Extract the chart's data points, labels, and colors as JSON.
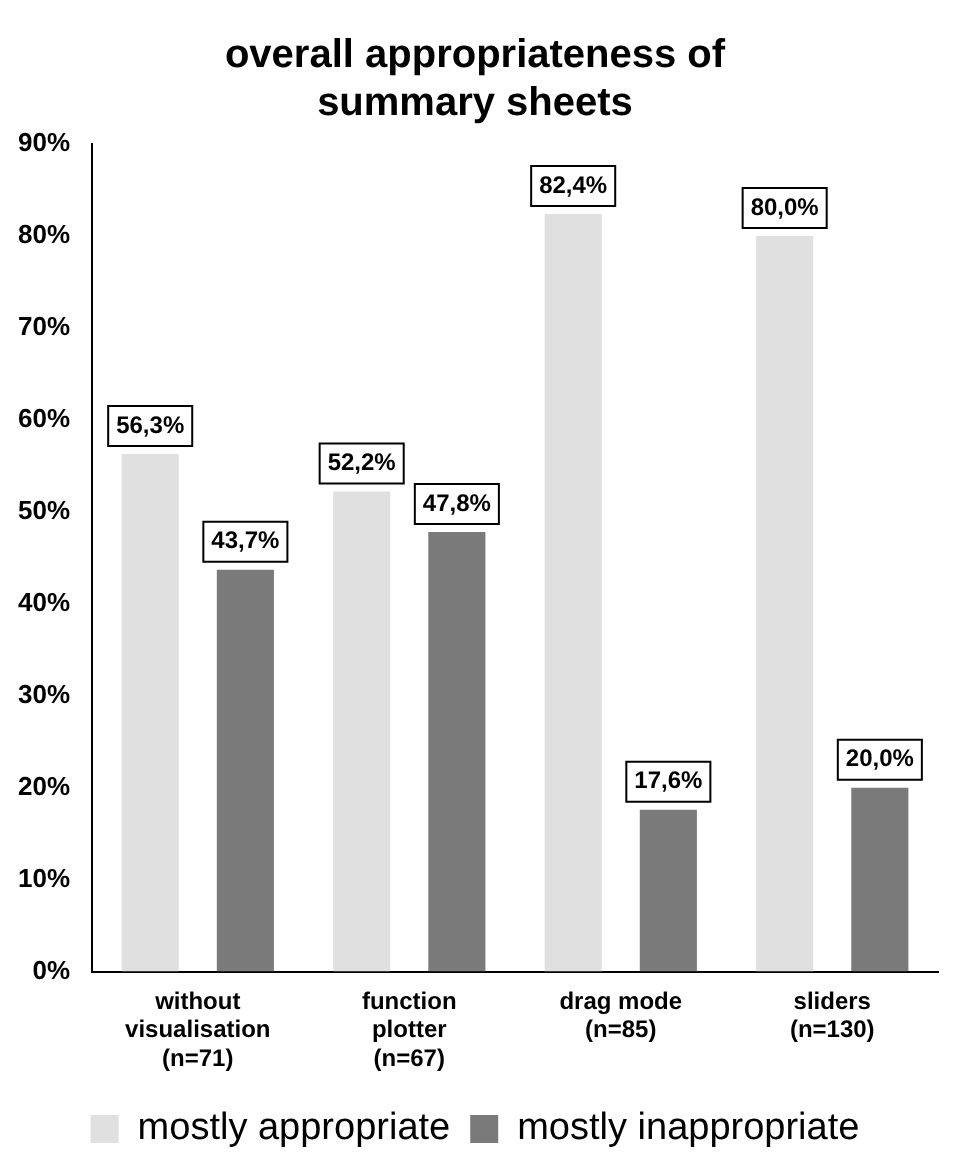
{
  "chart_data": {
    "type": "bar",
    "title": "overall appropriateness of\nsummary sheets",
    "categories": [
      "without\nvisualisation\n(n=71)",
      "function\nplotter\n(n=67)",
      "drag mode\n(n=85)",
      "sliders\n(n=130)"
    ],
    "series": [
      {
        "name": "mostly appropriate",
        "color": "#e0e0e0",
        "values": [
          56.3,
          52.2,
          82.4,
          80.0
        ],
        "value_labels": [
          "56,3%",
          "52,2%",
          "82,4%",
          "80,0%"
        ]
      },
      {
        "name": "mostly inappropriate",
        "color": "#7a7a7a",
        "values": [
          43.7,
          47.8,
          17.6,
          20.0
        ],
        "value_labels": [
          "43,7%",
          "47,8%",
          "17,6%",
          "20,0%"
        ]
      }
    ],
    "ylim": [
      0,
      90
    ],
    "yticks": [
      {
        "value": 0,
        "label": "0%"
      },
      {
        "value": 10,
        "label": "10%"
      },
      {
        "value": 20,
        "label": "20%"
      },
      {
        "value": 30,
        "label": "30%"
      },
      {
        "value": 40,
        "label": "40%"
      },
      {
        "value": 50,
        "label": "50%"
      },
      {
        "value": 60,
        "label": "60%"
      },
      {
        "value": 70,
        "label": "70%"
      },
      {
        "value": 80,
        "label": "80%"
      },
      {
        "value": 90,
        "label": "90%"
      }
    ],
    "grid": false,
    "legend": "bottom"
  }
}
